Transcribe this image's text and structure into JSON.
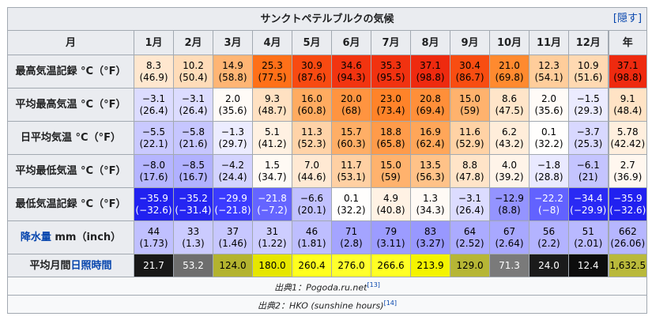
{
  "title": "サンクトペテルブルクの気候",
  "hide_label": "隠す",
  "header": [
    "月",
    "1月",
    "2月",
    "3月",
    "4月",
    "5月",
    "6月",
    "7月",
    "8月",
    "9月",
    "10月",
    "11月",
    "12月",
    "年"
  ],
  "rows": [
    {
      "label": "最高気温記録 °C（°F）",
      "cells": [
        {
          "a": "8.3",
          "b": "(46.9)",
          "bg": "#ffe7cf",
          "fg": "#000"
        },
        {
          "a": "10.2",
          "b": "(50.4)",
          "bg": "#ffdcb9",
          "fg": "#000"
        },
        {
          "a": "14.9",
          "b": "(58.8)",
          "bg": "#ffb574",
          "fg": "#000"
        },
        {
          "a": "25.3",
          "b": "(77.5)",
          "bg": "#ff7018",
          "fg": "#000"
        },
        {
          "a": "30.9",
          "b": "(87.6)",
          "bg": "#f84a11",
          "fg": "#000"
        },
        {
          "a": "34.6",
          "b": "(94.3)",
          "bg": "#f23410",
          "fg": "#000"
        },
        {
          "a": "35.3",
          "b": "(95.5)",
          "bg": "#f13210",
          "fg": "#000"
        },
        {
          "a": "37.1",
          "b": "(98.8)",
          "bg": "#ee2a0f",
          "fg": "#000"
        },
        {
          "a": "30.4",
          "b": "(86.7)",
          "bg": "#f84d11",
          "fg": "#000"
        },
        {
          "a": "21.0",
          "b": "(69.8)",
          "bg": "#ff8a2f",
          "fg": "#000"
        },
        {
          "a": "12.3",
          "b": "(54.1)",
          "bg": "#ffcd9b",
          "fg": "#000"
        },
        {
          "a": "10.9",
          "b": "(51.6)",
          "bg": "#ffd9b2",
          "fg": "#000"
        },
        {
          "a": "37.1",
          "b": "(98.8)",
          "bg": "#ee2a0f",
          "fg": "#000"
        }
      ]
    },
    {
      "label": "平均最高気温 °C（°F）",
      "cells": [
        {
          "a": "−3.1",
          "b": "(26.4)",
          "bg": "#dcdcff",
          "fg": "#000"
        },
        {
          "a": "−3.1",
          "b": "(26.4)",
          "bg": "#dcdcff",
          "fg": "#000"
        },
        {
          "a": "2.0",
          "b": "(35.6)",
          "bg": "#fffbf7",
          "fg": "#000"
        },
        {
          "a": "9.3",
          "b": "(48.7)",
          "bg": "#ffe1c2",
          "fg": "#000"
        },
        {
          "a": "16.0",
          "b": "(60.8)",
          "bg": "#ffab60",
          "fg": "#000"
        },
        {
          "a": "20.0",
          "b": "(68)",
          "bg": "#ff9440",
          "fg": "#000"
        },
        {
          "a": "23.0",
          "b": "(73.4)",
          "bg": "#ff8329",
          "fg": "#000"
        },
        {
          "a": "20.8",
          "b": "(69.4)",
          "bg": "#ff8f39",
          "fg": "#000"
        },
        {
          "a": "15.0",
          "b": "(59)",
          "bg": "#ffb26d",
          "fg": "#000"
        },
        {
          "a": "8.6",
          "b": "(47.5)",
          "bg": "#ffe5c9",
          "fg": "#000"
        },
        {
          "a": "2.0",
          "b": "(35.6)",
          "bg": "#fffbf7",
          "fg": "#000"
        },
        {
          "a": "−1.5",
          "b": "(29.3)",
          "bg": "#ebebff",
          "fg": "#000"
        },
        {
          "a": "9.1",
          "b": "(48.4)",
          "bg": "#ffe3c5",
          "fg": "#000"
        }
      ]
    },
    {
      "label": "日平均気温 °C（°F）",
      "cells": [
        {
          "a": "−5.5",
          "b": "(22.1)",
          "bg": "#c9c9ff",
          "fg": "#000"
        },
        {
          "a": "−5.8",
          "b": "(21.6)",
          "bg": "#c6c6ff",
          "fg": "#000"
        },
        {
          "a": "−1.3",
          "b": "(29.7)",
          "bg": "#ececff",
          "fg": "#000"
        },
        {
          "a": "5.1",
          "b": "(41.2)",
          "bg": "#fff1e2",
          "fg": "#000"
        },
        {
          "a": "11.3",
          "b": "(52.3)",
          "bg": "#ffd3a8",
          "fg": "#000"
        },
        {
          "a": "15.7",
          "b": "(60.3)",
          "bg": "#ffae66",
          "fg": "#000"
        },
        {
          "a": "18.8",
          "b": "(65.8)",
          "bg": "#ff9b4a",
          "fg": "#000"
        },
        {
          "a": "16.9",
          "b": "(62.4)",
          "bg": "#ffa659",
          "fg": "#000"
        },
        {
          "a": "11.6",
          "b": "(52.9)",
          "bg": "#ffd2a5",
          "fg": "#000"
        },
        {
          "a": "6.2",
          "b": "(43.2)",
          "bg": "#ffedda",
          "fg": "#000"
        },
        {
          "a": "0.1",
          "b": "(32.2)",
          "bg": "#fffefd",
          "fg": "#000"
        },
        {
          "a": "−3.7",
          "b": "(25.3)",
          "bg": "#d8d8ff",
          "fg": "#000"
        },
        {
          "a": "5.78",
          "b": "(42.42)",
          "bg": "#ffefde",
          "fg": "#000"
        }
      ]
    },
    {
      "label": "平均最低気温 °C（°F）",
      "cells": [
        {
          "a": "−8.0",
          "b": "(17.6)",
          "bg": "#b5b5ff",
          "fg": "#000"
        },
        {
          "a": "−8.5",
          "b": "(16.7)",
          "bg": "#b1b1ff",
          "fg": "#000"
        },
        {
          "a": "−4.2",
          "b": "(24.4)",
          "bg": "#d3d3ff",
          "fg": "#000"
        },
        {
          "a": "1.5",
          "b": "(34.7)",
          "bg": "#fffaf4",
          "fg": "#000"
        },
        {
          "a": "7.0",
          "b": "(44.6)",
          "bg": "#ffe9d3",
          "fg": "#000"
        },
        {
          "a": "11.7",
          "b": "(53.1)",
          "bg": "#ffd0a3",
          "fg": "#000"
        },
        {
          "a": "15.0",
          "b": "(59)",
          "bg": "#ffb26d",
          "fg": "#000"
        },
        {
          "a": "13.5",
          "b": "(56.3)",
          "bg": "#ffc288",
          "fg": "#000"
        },
        {
          "a": "8.8",
          "b": "(47.8)",
          "bg": "#ffe4c8",
          "fg": "#000"
        },
        {
          "a": "4.0",
          "b": "(39.2)",
          "bg": "#fff4e9",
          "fg": "#000"
        },
        {
          "a": "−1.8",
          "b": "(28.8)",
          "bg": "#e9e9ff",
          "fg": "#000"
        },
        {
          "a": "−6.1",
          "b": "(21)",
          "bg": "#c4c4ff",
          "fg": "#000"
        },
        {
          "a": "2.7",
          "b": "(36.9)",
          "bg": "#fff7ef",
          "fg": "#000"
        }
      ]
    },
    {
      "label": "最低気温記録 °C（°F）",
      "cells": [
        {
          "a": "−35.9",
          "b": "(−32.6)",
          "bg": "#2121f0",
          "fg": "#fff"
        },
        {
          "a": "−35.2",
          "b": "(−31.4)",
          "bg": "#2626f2",
          "fg": "#fff"
        },
        {
          "a": "−29.9",
          "b": "(−21.8)",
          "bg": "#3b3bff",
          "fg": "#fff"
        },
        {
          "a": "−21.8",
          "b": "(−7.2)",
          "bg": "#6565ff",
          "fg": "#fff"
        },
        {
          "a": "−6.6",
          "b": "(20.1)",
          "bg": "#c1c1ff",
          "fg": "#000"
        },
        {
          "a": "0.1",
          "b": "(32.2)",
          "bg": "#fffefd",
          "fg": "#000"
        },
        {
          "a": "4.9",
          "b": "(40.8)",
          "bg": "#fff2e4",
          "fg": "#000"
        },
        {
          "a": "1.3",
          "b": "(34.3)",
          "bg": "#fffaf5",
          "fg": "#000"
        },
        {
          "a": "−3.1",
          "b": "(26.4)",
          "bg": "#dcdcff",
          "fg": "#000"
        },
        {
          "a": "−12.9",
          "b": "(8.8)",
          "bg": "#9494ff",
          "fg": "#000"
        },
        {
          "a": "−22.2",
          "b": "(−8)",
          "bg": "#6262ff",
          "fg": "#fff"
        },
        {
          "a": "−34.4",
          "b": "(−29.9)",
          "bg": "#2a2af4",
          "fg": "#fff"
        },
        {
          "a": "−35.9",
          "b": "(−32.6)",
          "bg": "#2121f0",
          "fg": "#fff"
        }
      ]
    },
    {
      "label_link": "降水量",
      "label_rest": " mm（inch）",
      "cells": [
        {
          "a": "44",
          "b": "(1.73)",
          "bg": "#c0c0ff",
          "fg": "#000"
        },
        {
          "a": "33",
          "b": "(1.3)",
          "bg": "#cbcbff",
          "fg": "#000"
        },
        {
          "a": "37",
          "b": "(1.46)",
          "bg": "#c7c7ff",
          "fg": "#000"
        },
        {
          "a": "31",
          "b": "(1.22)",
          "bg": "#cdcdff",
          "fg": "#000"
        },
        {
          "a": "46",
          "b": "(1.81)",
          "bg": "#bebeff",
          "fg": "#000"
        },
        {
          "a": "71",
          "b": "(2.8)",
          "bg": "#a4a4ff",
          "fg": "#000"
        },
        {
          "a": "79",
          "b": "(3.11)",
          "bg": "#9c9cff",
          "fg": "#000"
        },
        {
          "a": "83",
          "b": "(3.27)",
          "bg": "#9898ff",
          "fg": "#000"
        },
        {
          "a": "64",
          "b": "(2.52)",
          "bg": "#ababff",
          "fg": "#000"
        },
        {
          "a": "67",
          "b": "(2.64)",
          "bg": "#a8a8ff",
          "fg": "#000"
        },
        {
          "a": "56",
          "b": "(2.2)",
          "bg": "#b3b3ff",
          "fg": "#000"
        },
        {
          "a": "51",
          "b": "(2.01)",
          "bg": "#b9b9ff",
          "fg": "#000"
        },
        {
          "a": "662",
          "b": "(26.06)",
          "bg": "#b6b6ff",
          "fg": "#000"
        }
      ]
    }
  ],
  "sunshine": {
    "label_pre": "平均月間",
    "label_link": "日照時間",
    "cells": [
      {
        "a": "21.7",
        "bg": "#181818",
        "fg": "#fff"
      },
      {
        "a": "53.2",
        "bg": "#6e6e6e",
        "fg": "#fff"
      },
      {
        "a": "124.0",
        "bg": "#b3b32f",
        "fg": "#000"
      },
      {
        "a": "180.0",
        "bg": "#e6e600",
        "fg": "#000"
      },
      {
        "a": "260.4",
        "bg": "#ffff1e",
        "fg": "#000"
      },
      {
        "a": "276.0",
        "bg": "#ffff2c",
        "fg": "#000"
      },
      {
        "a": "266.6",
        "bg": "#ffff24",
        "fg": "#000"
      },
      {
        "a": "213.9",
        "bg": "#f4f400",
        "fg": "#000"
      },
      {
        "a": "129.0",
        "bg": "#b6b635",
        "fg": "#000"
      },
      {
        "a": "71.3",
        "bg": "#7a7a7a",
        "fg": "#fff"
      },
      {
        "a": "24.0",
        "bg": "#1b1b1b",
        "fg": "#fff"
      },
      {
        "a": "12.4",
        "bg": "#0d0d0d",
        "fg": "#fff"
      },
      {
        "a": "1,632.5",
        "bg": "#b9b93b",
        "fg": "#000"
      }
    ]
  },
  "sources": [
    {
      "text": "出典1：Pogoda.ru.net",
      "ref": "[13]"
    },
    {
      "text": "出典2：HKO (sunshine hours)",
      "ref": "[14]"
    }
  ]
}
